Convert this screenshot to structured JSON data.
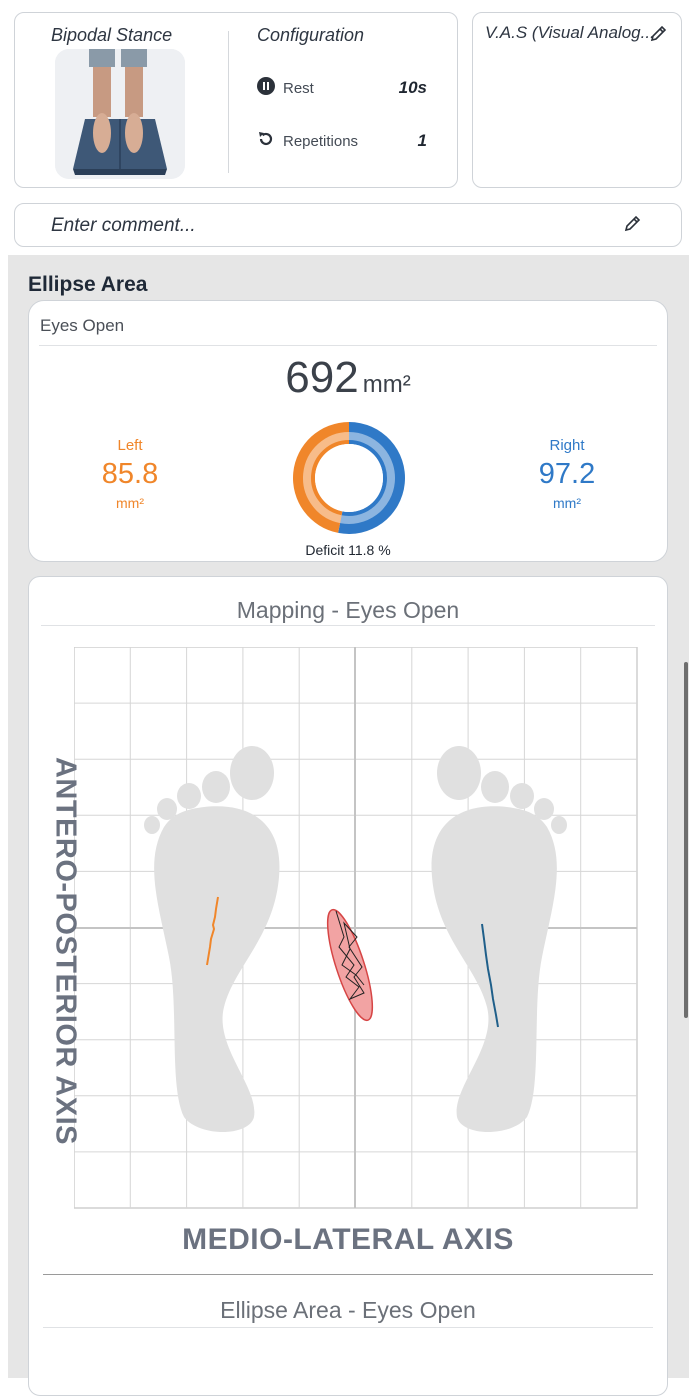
{
  "exercise": {
    "title": "Bipodal Stance",
    "image": "standing-feet-on-balance-plates"
  },
  "configuration": {
    "title": "Configuration",
    "rest_icon": "pause-circle-icon",
    "rest_label": "Rest",
    "rest_value": "10s",
    "reps_icon": "repeat-icon",
    "reps_label": "Repetitions",
    "reps_value": "1"
  },
  "vas": {
    "title": "V.A.S (Visual Analog...",
    "edit_icon": "pencil-icon"
  },
  "comment": {
    "placeholder": "Enter comment...",
    "edit_icon": "pencil-icon"
  },
  "ellipse_area": {
    "section_title": "Ellipse Area",
    "condition": "Eyes Open",
    "total_value": "692",
    "total_unit": "mm²",
    "left": {
      "label": "Left",
      "value": "85.8",
      "unit": "mm²",
      "color": "#f0862a"
    },
    "right": {
      "label": "Right",
      "value": "97.2",
      "unit": "mm²",
      "color": "#2f79c7"
    },
    "deficit": "Deficit 11.8 %"
  },
  "chart_data": {
    "type": "pie",
    "slices": [
      {
        "name": "Right",
        "value": 97.2,
        "color": "#2f79c7"
      },
      {
        "name": "Left",
        "value": 85.8,
        "color": "#f0862a"
      }
    ]
  },
  "mapping": {
    "title": "Mapping - Eyes Open",
    "x_axis_label": "MEDIO-LATERAL AXIS",
    "y_axis_label": "ANTERO-POSTERIOR AXIS",
    "left_trace_color": "#f0862a",
    "right_trace_color": "#1f5f8a",
    "ellipse_color": "#e35b5b"
  },
  "next_section": {
    "title": "Ellipse Area - Eyes Open"
  }
}
